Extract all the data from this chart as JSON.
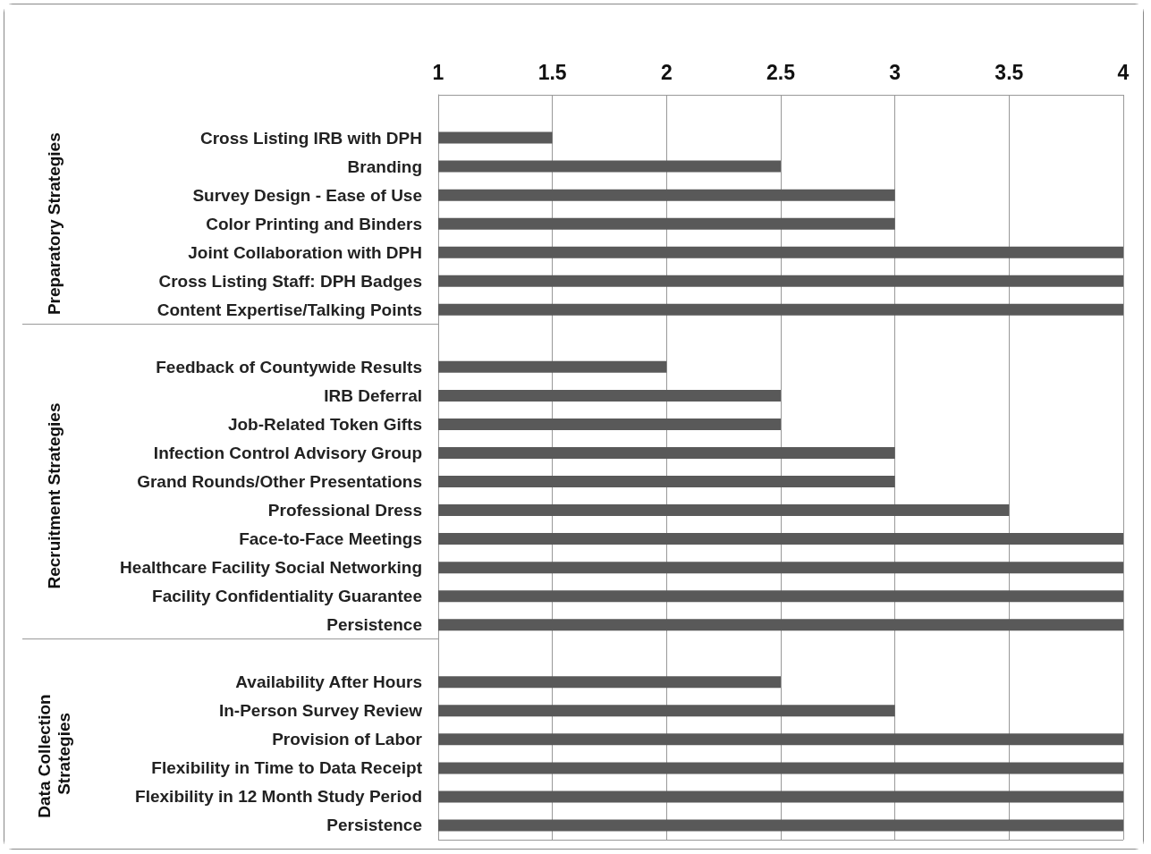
{
  "chart_data": {
    "type": "bar",
    "orientation": "horizontal",
    "color": "#595959",
    "categories": [
      null,
      "Cross Listing IRB with DPH",
      "Branding",
      "Survey Design - Ease of Use",
      "Color Printing and Binders",
      "Joint Collaboration with DPH",
      "Cross Listing Staff: DPH Badges",
      "Content Expertise/Talking Points",
      null,
      "Feedback of Countywide Results",
      "IRB Deferral",
      "Job-Related Token Gifts",
      "Infection Control Advisory Group",
      "Grand Rounds/Other Presentations",
      "Professional Dress",
      "Face-to-Face Meetings",
      "Healthcare Facility Social Networking",
      "Facility Confidentiality Guarantee",
      "Persistence",
      null,
      "Availability After Hours",
      "In-Person Survey Review",
      "Provision of Labor",
      "Flexibility in Time to Data Receipt",
      "Flexibility in 12 Month Study Period",
      "Persistence"
    ],
    "values": [
      null,
      1.5,
      2.5,
      3,
      3,
      4,
      4,
      4,
      null,
      2,
      2.5,
      2.5,
      3,
      3,
      3.5,
      4,
      4,
      4,
      4,
      null,
      2.5,
      3,
      4,
      4,
      4,
      4
    ],
    "xlim": [
      1,
      4
    ],
    "xticks": [
      1,
      1.5,
      2,
      2.5,
      3,
      3.5,
      4
    ],
    "grid": "x",
    "annotations": [
      "Preparatory Strategies",
      "Recruitment Strategies",
      "Data Collection Strategies"
    ]
  }
}
